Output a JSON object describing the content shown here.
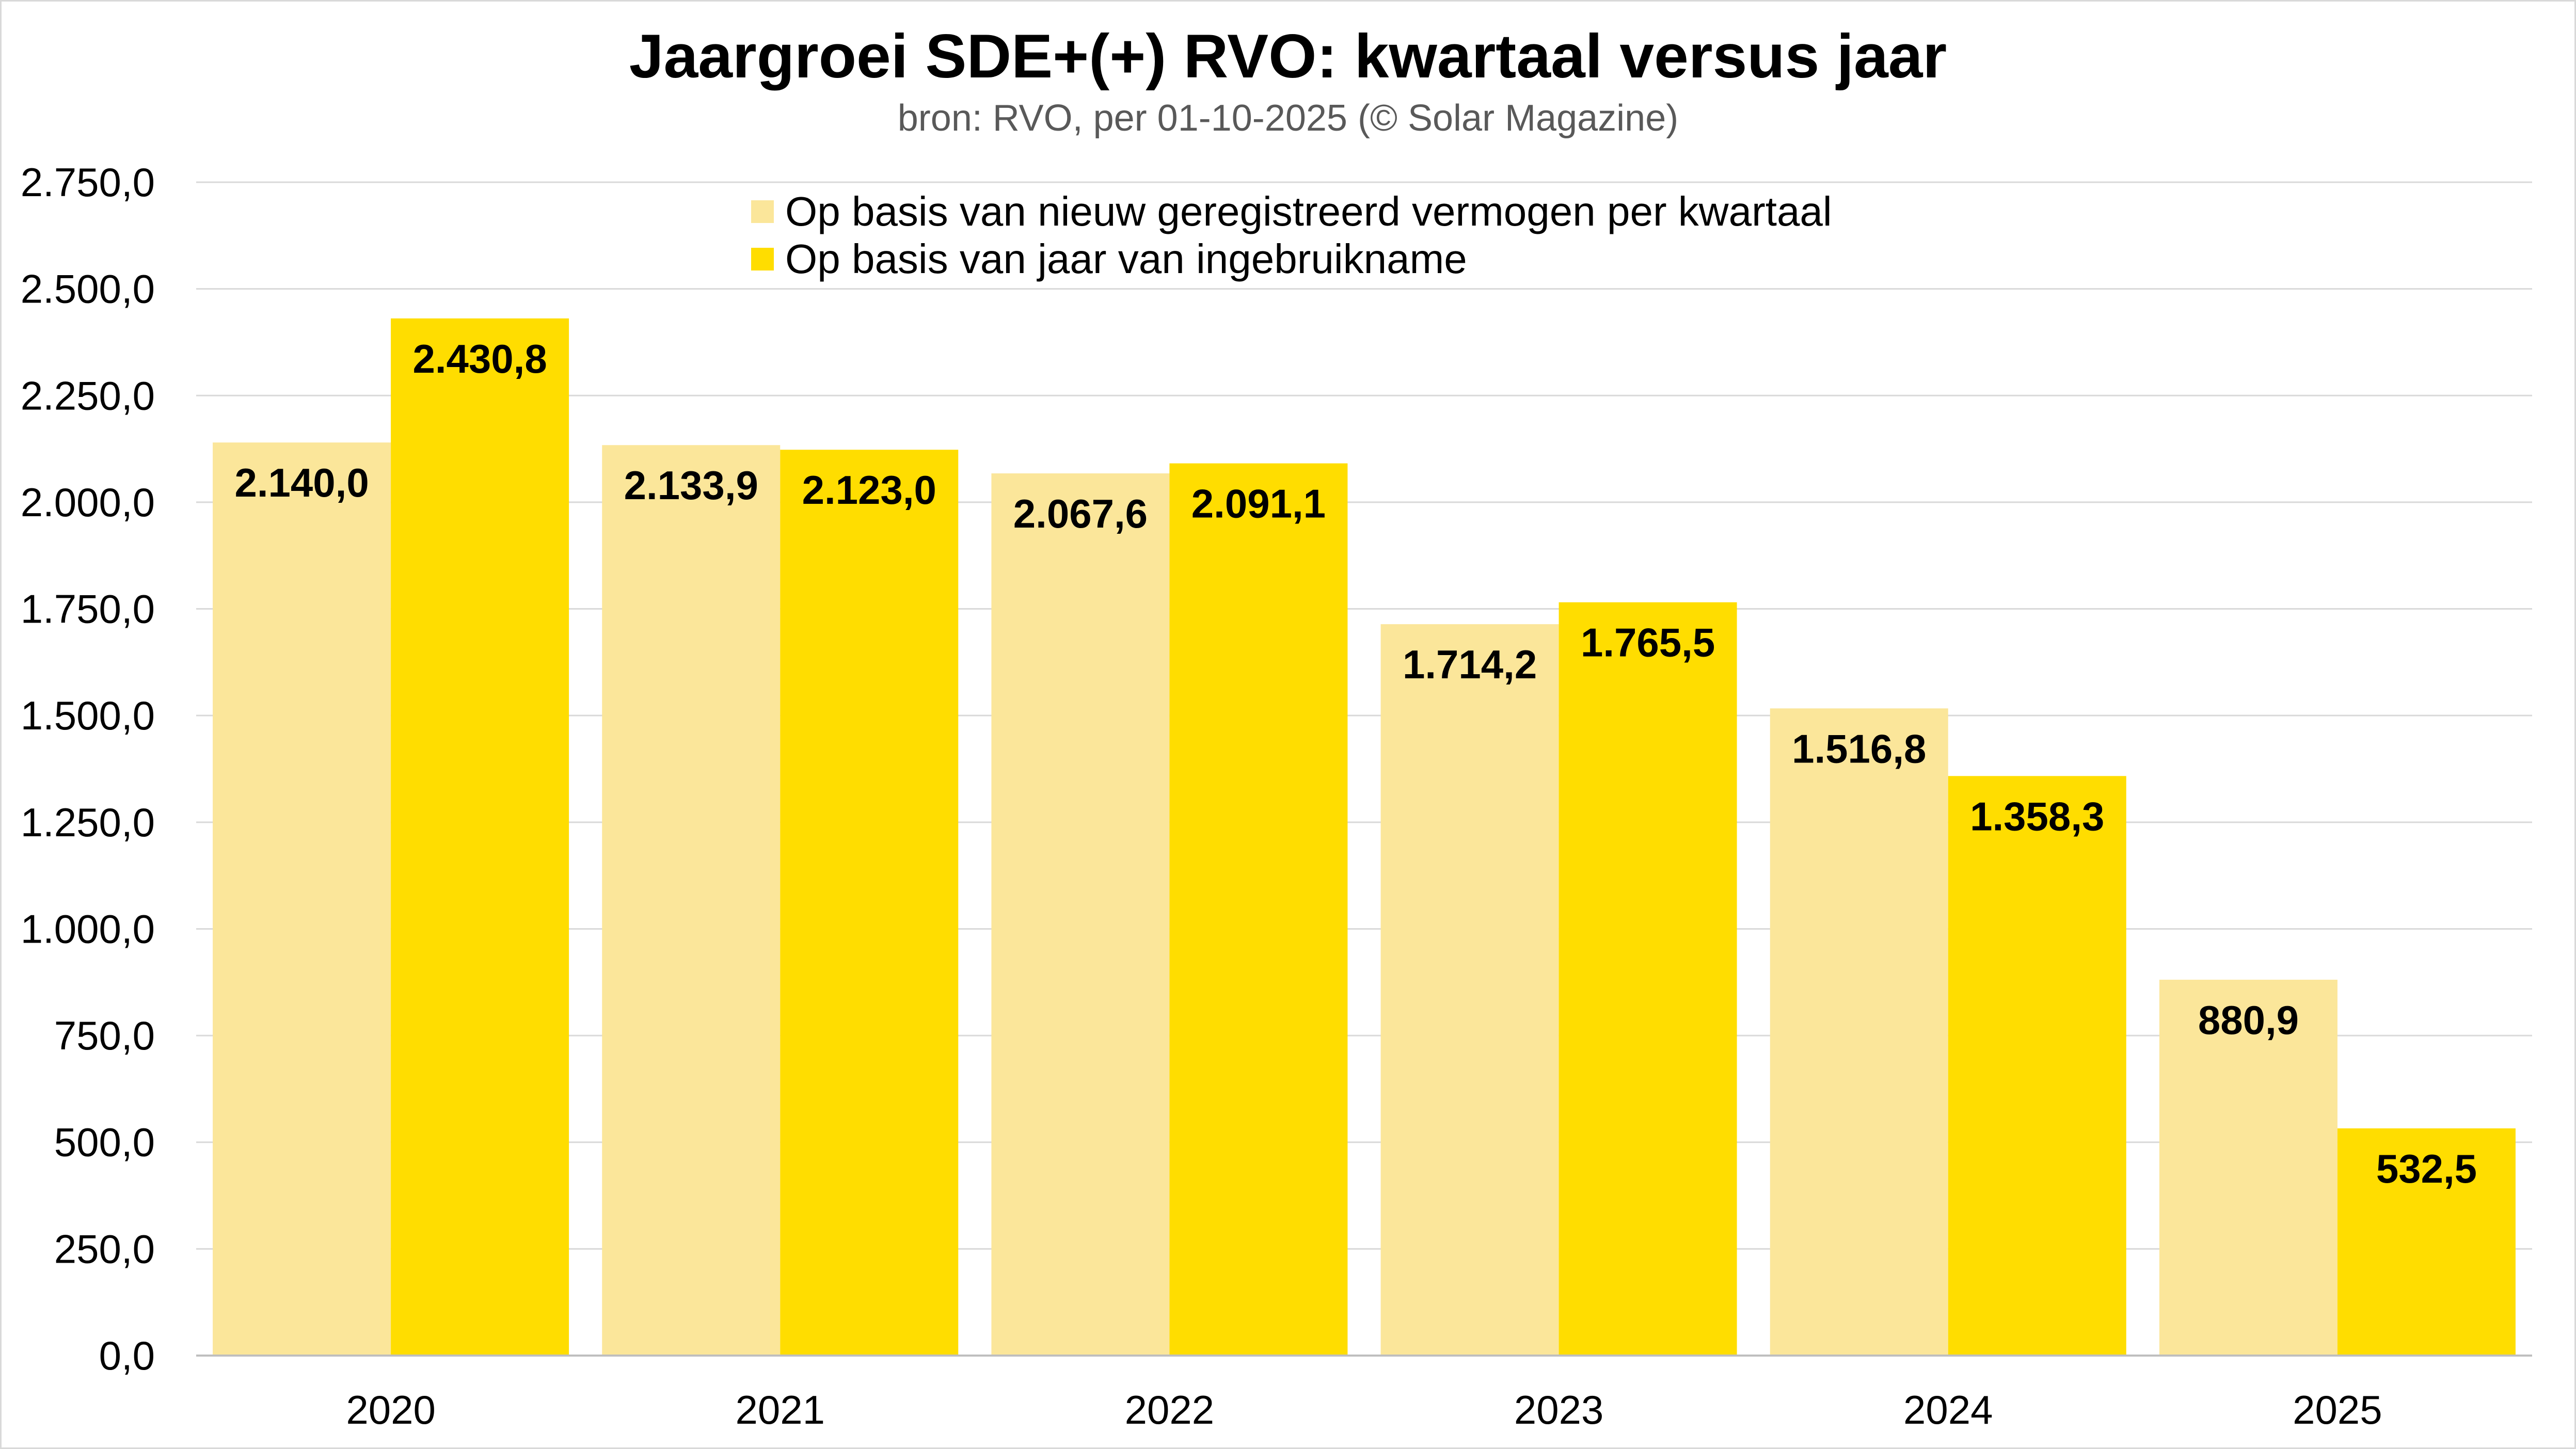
{
  "chart_data": {
    "type": "bar",
    "title": "Jaargroei SDE+(+) RVO: kwartaal versus jaar",
    "subtitle": "bron: RVO, per 01-10-2025 (© Solar Magazine)",
    "categories": [
      "2020",
      "2021",
      "2022",
      "2023",
      "2024",
      "2025"
    ],
    "series": [
      {
        "name": "Op basis van nieuw geregistreerd vermogen per kwartaal",
        "color": "#fbe69a",
        "values": [
          2140.0,
          2133.9,
          2067.6,
          1714.2,
          1516.8,
          880.9
        ],
        "labels": [
          "2.140,0",
          "2.133,9",
          "2.067,6",
          "1.714,2",
          "1.516,8",
          "880,9"
        ]
      },
      {
        "name": "Op basis van jaar van ingebruikname",
        "color": "#ffdd00",
        "values": [
          2430.8,
          2123.0,
          2091.1,
          1765.5,
          1358.3,
          532.5
        ],
        "labels": [
          "2.430,8",
          "2.123,0",
          "2.091,1",
          "1.765,5",
          "1.358,3",
          "532,5"
        ]
      }
    ],
    "ylim": [
      0,
      2750
    ],
    "yticks": [
      0,
      250,
      500,
      750,
      1000,
      1250,
      1500,
      1750,
      2000,
      2250,
      2500,
      2750
    ],
    "ytick_labels": [
      "0,0",
      "250,0",
      "500,0",
      "750,0",
      "1.000,0",
      "1.250,0",
      "1.500,0",
      "1.750,0",
      "2.000,0",
      "2.250,0",
      "2.500,0",
      "2.750,0"
    ],
    "xlabel": "",
    "ylabel": "",
    "grid": true,
    "legend_position": "top-center"
  }
}
